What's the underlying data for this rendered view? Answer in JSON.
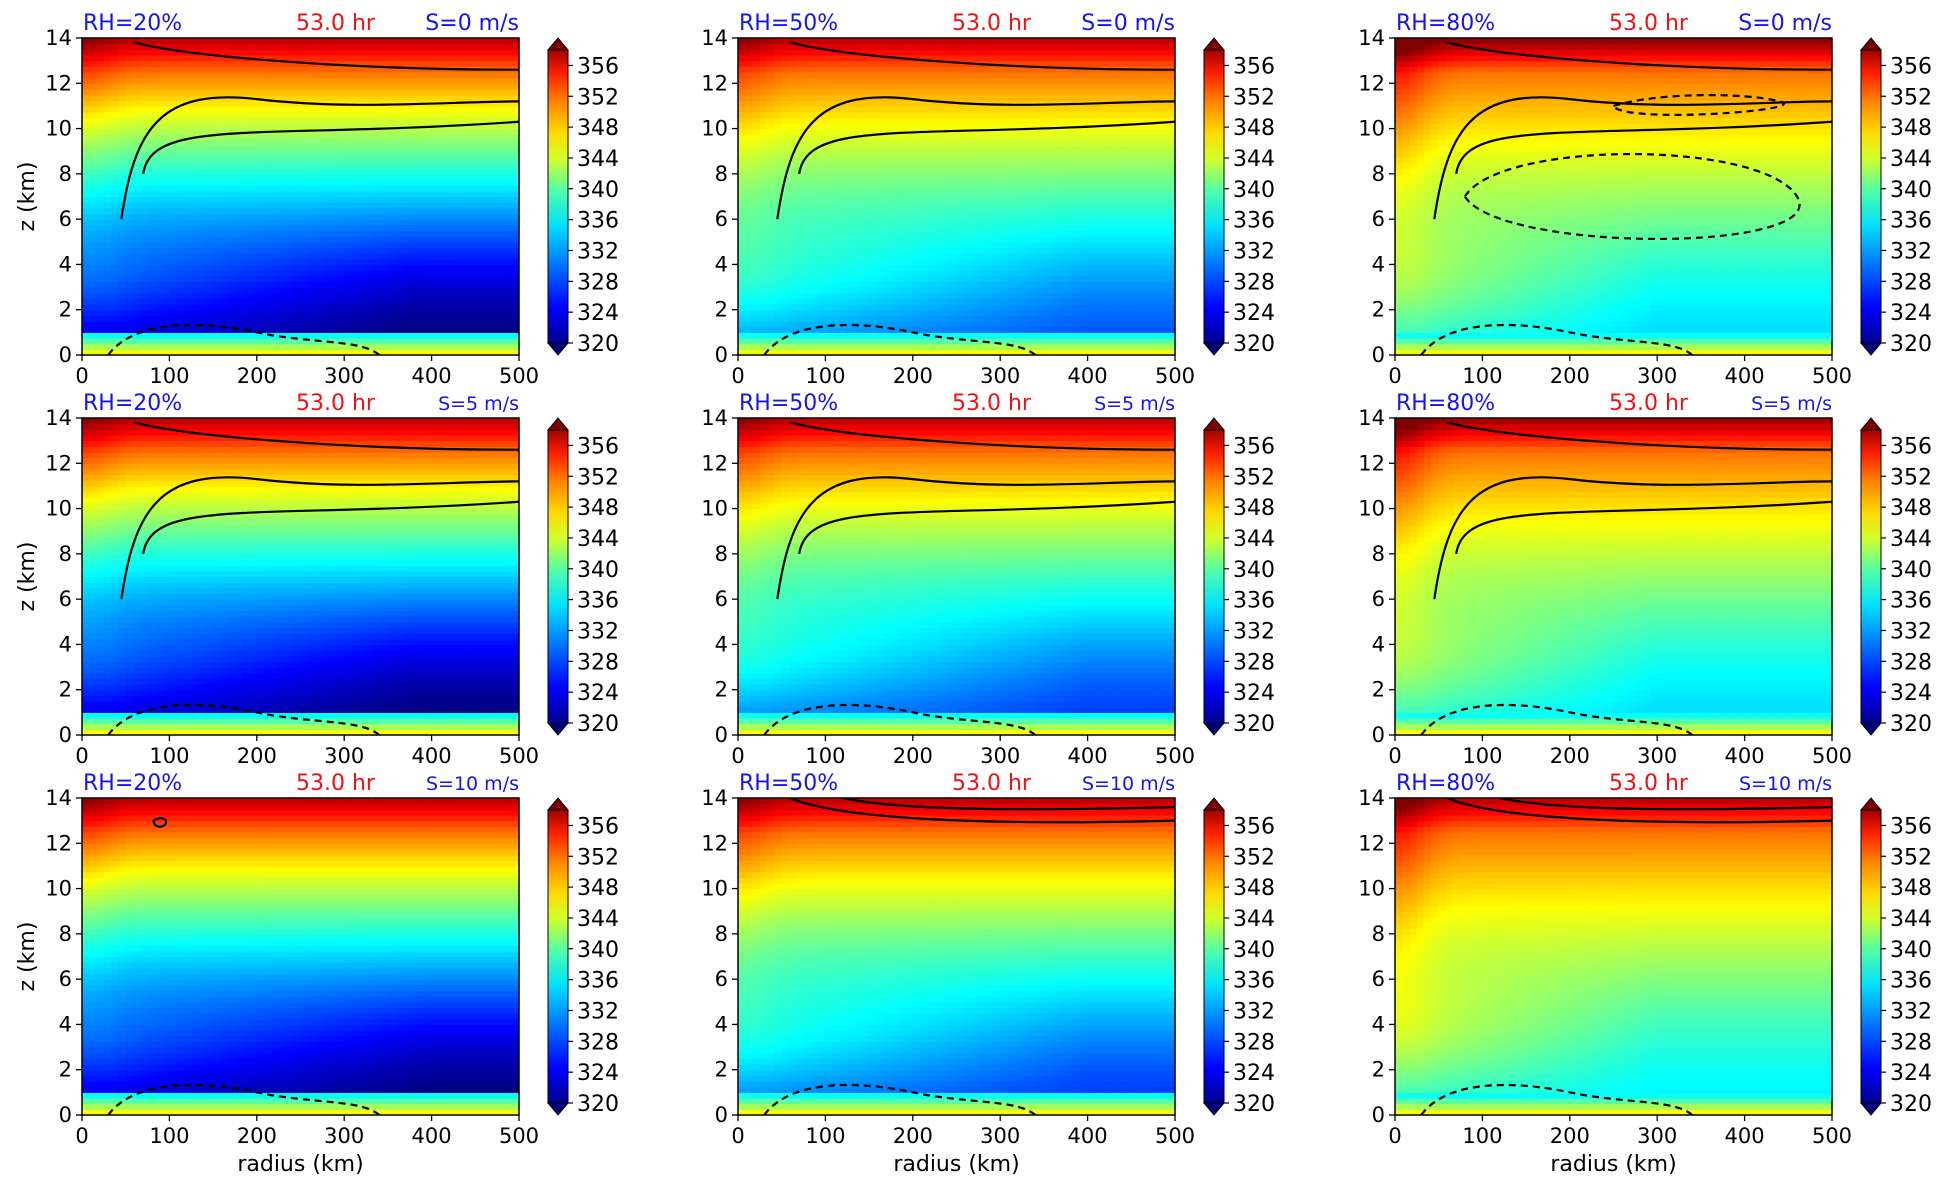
{
  "figure": {
    "colorbar_ticks": [
      "356",
      "352",
      "348",
      "344",
      "340",
      "336",
      "332",
      "328",
      "324",
      "320"
    ],
    "colorbar_range": [
      320,
      358
    ],
    "colormap": "jet",
    "xlabel": "radius (km)",
    "ylabel": "z (km)",
    "x_ticks": [
      "0",
      "100",
      "200",
      "300",
      "400",
      "500"
    ],
    "y_ticks": [
      "0",
      "2",
      "4",
      "6",
      "8",
      "10",
      "12",
      "14"
    ],
    "time_label": "53.0 hr"
  },
  "chart_data": [
    {
      "type": "heatmap",
      "rh": "RH=20%",
      "time": "53.0 hr",
      "shear": "S=0 m/s",
      "xlim": [
        0,
        500
      ],
      "ylim": [
        0,
        14
      ],
      "xlabel": "",
      "ylabel": "z (km)",
      "low_center_km": [
        380,
        2.5
      ],
      "low_value": 320,
      "top_value": 356,
      "has_solid_contours": true,
      "has_dashed_contours": true
    },
    {
      "type": "heatmap",
      "rh": "RH=50%",
      "time": "53.0 hr",
      "shear": "S=0 m/s",
      "xlim": [
        0,
        500
      ],
      "ylim": [
        0,
        14
      ],
      "xlabel": "",
      "ylabel": "",
      "low_center_km": [
        400,
        3
      ],
      "low_value": 328,
      "top_value": 356,
      "has_solid_contours": true,
      "has_dashed_contours": true
    },
    {
      "type": "heatmap",
      "rh": "RH=80%",
      "time": "53.0 hr",
      "shear": "S=0 m/s",
      "xlim": [
        0,
        500
      ],
      "ylim": [
        0,
        14
      ],
      "xlabel": "",
      "ylabel": "",
      "low_center_km": [
        300,
        3
      ],
      "low_value": 333,
      "top_value": 358,
      "has_solid_contours": true,
      "has_dashed_contours": true
    },
    {
      "type": "heatmap",
      "rh": "RH=20%",
      "time": "53.0 hr",
      "shear": "S=5 m/s",
      "xlim": [
        0,
        500
      ],
      "ylim": [
        0,
        14
      ],
      "xlabel": "",
      "ylabel": "z (km)",
      "low_center_km": [
        380,
        2.5
      ],
      "low_value": 320,
      "top_value": 356,
      "has_solid_contours": true,
      "has_dashed_contours": true
    },
    {
      "type": "heatmap",
      "rh": "RH=50%",
      "time": "53.0 hr",
      "shear": "S=5 m/s",
      "xlim": [
        0,
        500
      ],
      "ylim": [
        0,
        14
      ],
      "xlabel": "",
      "ylabel": "",
      "low_center_km": [
        400,
        3
      ],
      "low_value": 327,
      "top_value": 356,
      "has_solid_contours": true,
      "has_dashed_contours": true
    },
    {
      "type": "heatmap",
      "rh": "RH=80%",
      "time": "53.0 hr",
      "shear": "S=5 m/s",
      "xlim": [
        0,
        500
      ],
      "ylim": [
        0,
        14
      ],
      "xlabel": "",
      "ylabel": "",
      "low_center_km": [
        300,
        3
      ],
      "low_value": 333,
      "top_value": 357,
      "has_solid_contours": true,
      "has_dashed_contours": true
    },
    {
      "type": "heatmap",
      "rh": "RH=20%",
      "time": "53.0 hr",
      "shear": "S=10 m/s",
      "xlim": [
        0,
        500
      ],
      "ylim": [
        0,
        14
      ],
      "xlabel": "radius (km)",
      "ylabel": "z (km)",
      "low_center_km": [
        400,
        2.5
      ],
      "low_value": 320,
      "top_value": 356,
      "has_solid_contours": true,
      "has_dashed_contours": true
    },
    {
      "type": "heatmap",
      "rh": "RH=50%",
      "time": "53.0 hr",
      "shear": "S=10 m/s",
      "xlim": [
        0,
        500
      ],
      "ylim": [
        0,
        14
      ],
      "xlabel": "radius (km)",
      "ylabel": "",
      "low_center_km": [
        400,
        3
      ],
      "low_value": 327,
      "top_value": 356,
      "has_solid_contours": true,
      "has_dashed_contours": true
    },
    {
      "type": "heatmap",
      "rh": "RH=80%",
      "time": "53.0 hr",
      "shear": "S=10 m/s",
      "xlim": [
        0,
        500
      ],
      "ylim": [
        0,
        14
      ],
      "xlabel": "radius (km)",
      "ylabel": "",
      "low_center_km": [
        300,
        3.5
      ],
      "low_value": 334,
      "top_value": 356,
      "has_solid_contours": true,
      "has_dashed_contours": true
    }
  ]
}
